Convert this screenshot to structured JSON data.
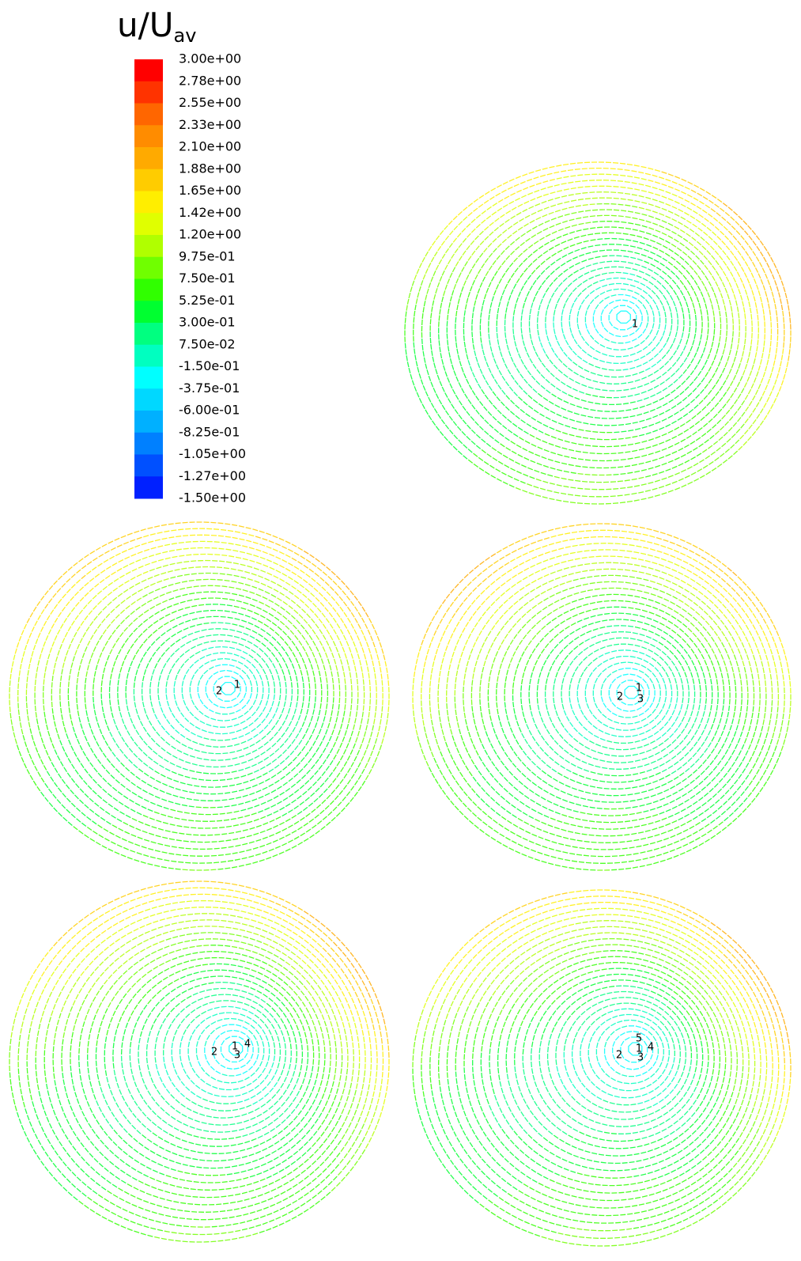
{
  "legend": {
    "title": "u/U",
    "title_sub": "av",
    "labels": [
      "3.00e+00",
      "2.78e+00",
      "2.55e+00",
      "2.33e+00",
      "2.10e+00",
      "1.88e+00",
      "1.65e+00",
      "1.42e+00",
      "1.20e+00",
      "9.75e-01",
      "7.50e-01",
      "5.25e-01",
      "3.00e-01",
      "7.50e-02",
      "-1.50e-01",
      "-3.75e-01",
      "-6.00e-01",
      "-8.25e-01",
      "-1.05e+00",
      "-1.27e+00",
      "-1.50e+00"
    ],
    "colors": [
      "#ff0000",
      "#ff3300",
      "#ff6600",
      "#ff8c00",
      "#ffaa00",
      "#ffcc00",
      "#ffee00",
      "#e0ff00",
      "#b0ff00",
      "#70ff00",
      "#30ff00",
      "#00ff30",
      "#00ff80",
      "#00ffc0",
      "#00ffff",
      "#00d8ff",
      "#00b0ff",
      "#0080ff",
      "#0050ff",
      "#0020ff"
    ]
  },
  "panels": [
    {
      "markers": [
        "1"
      ]
    },
    {
      "markers": [
        "2",
        "1"
      ]
    },
    {
      "markers": [
        "2",
        "1",
        "3"
      ]
    },
    {
      "markers": [
        "2",
        "1",
        "4",
        "3"
      ]
    },
    {
      "markers": [
        "5",
        "4",
        "2",
        "1",
        "3"
      ]
    }
  ]
}
